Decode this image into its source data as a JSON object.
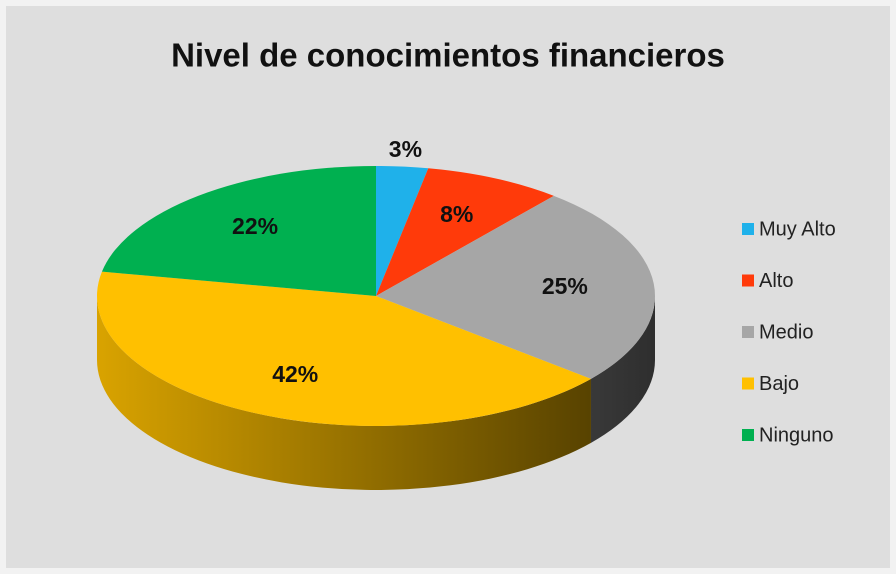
{
  "chart_data": {
    "type": "pie3d",
    "title": "Nivel de conocimientos financieros",
    "categories": [
      "Muy Alto",
      "Alto",
      "Medio",
      "Bajo",
      "Ninguno"
    ],
    "values": [
      3,
      8,
      25,
      42,
      22
    ],
    "value_labels": [
      "3%",
      "8%",
      "25%",
      "42%",
      "22%"
    ],
    "colors": [
      "#1fb1ea",
      "#ff3a0a",
      "#a6a6a6",
      "#ffc000",
      "#00b050"
    ],
    "legend": "right"
  }
}
